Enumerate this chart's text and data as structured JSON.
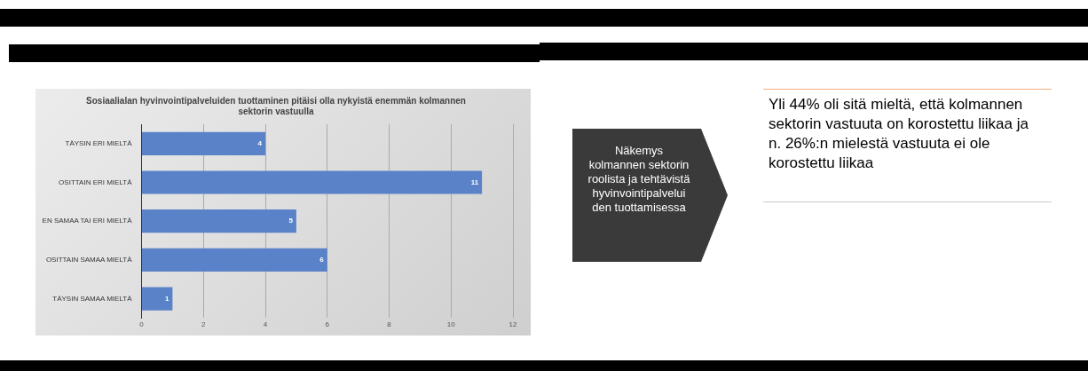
{
  "chart_data": {
    "type": "bar",
    "orientation": "horizontal",
    "title": "Sosiaalialan hyvinvointipalveluiden tuottaminen pitäisi olla nykyistä enemmän kolmannen sektorin vastuulla",
    "categories": [
      "TÄYSIN ERI MIELTÄ",
      "OSITTAIN ERI MIELTÄ",
      "EN SAMAA TAI ERI MIELTÄ",
      "OSITTAIN SAMAA MIELTÄ",
      "TÄYSIN SAMAA MIELTÄ"
    ],
    "values": [
      4,
      11,
      5,
      6,
      1
    ],
    "color": "#5a82c8",
    "xlim": [
      0,
      12
    ],
    "xticks": [
      0,
      2,
      4,
      6,
      8,
      10,
      12
    ],
    "grid": "x",
    "data_labels": true,
    "annotations": [
      "Näkemys kolmannen sektorin roolista ja tehtävistä hyvinvointipalvelui den tuottamisessa",
      "Yli 44% oli sitä mieltä, että kolmannen sektorin vastuuta on korostettu liikaa ja  n. 26%:n mielestä vastuuta ei ole korostettu liikaa"
    ]
  }
}
